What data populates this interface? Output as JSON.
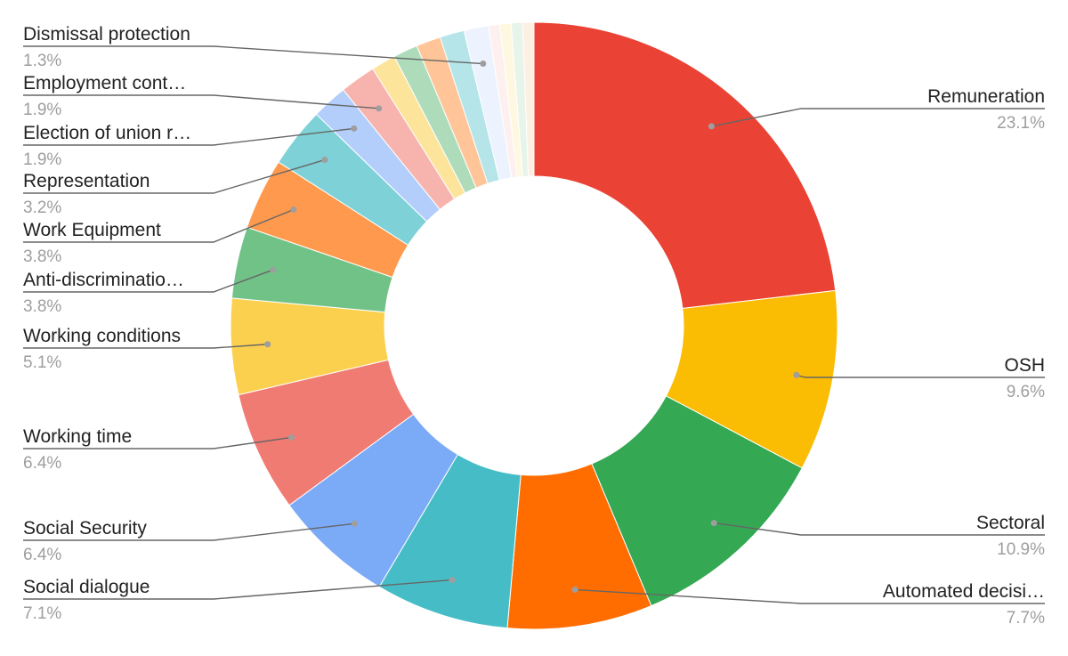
{
  "chart_data": {
    "type": "pie",
    "donut": true,
    "title": "",
    "slices": [
      {
        "label": "Remuneration",
        "pct_label": "23.1%",
        "value": 23.1,
        "color": "#ea4335"
      },
      {
        "label": "OSH",
        "pct_label": "9.6%",
        "value": 9.6,
        "color": "#fbbc04"
      },
      {
        "label": "Sectoral",
        "pct_label": "10.9%",
        "value": 10.9,
        "color": "#34a853"
      },
      {
        "label": "Automated decisi…",
        "pct_label": "7.7%",
        "value": 7.7,
        "color": "#ff6d01"
      },
      {
        "label": "Social dialogue",
        "pct_label": "7.1%",
        "value": 7.1,
        "color": "#46bdc6"
      },
      {
        "label": "Social Security",
        "pct_label": "6.4%",
        "value": 6.4,
        "color": "#7baaf7"
      },
      {
        "label": "Working time",
        "pct_label": "6.4%",
        "value": 6.4,
        "color": "#f07b72"
      },
      {
        "label": "Working conditions",
        "pct_label": "5.1%",
        "value": 5.1,
        "color": "#fcd04f"
      },
      {
        "label": "Anti-discriminatio…",
        "pct_label": "3.8%",
        "value": 3.8,
        "color": "#71c287"
      },
      {
        "label": "Work Equipment",
        "pct_label": "3.8%",
        "value": 3.8,
        "color": "#ff994d"
      },
      {
        "label": "Representation",
        "pct_label": "3.2%",
        "value": 3.2,
        "color": "#7ed1d7"
      },
      {
        "label": "Election of union r…",
        "pct_label": "1.9%",
        "value": 1.9,
        "color": "#b3cefb"
      },
      {
        "label": "Employment cont…",
        "pct_label": "1.9%",
        "value": 1.9,
        "color": "#f7b4ae"
      },
      {
        "label": "",
        "pct_label": "",
        "value": 1.3,
        "color": "#fde49b"
      },
      {
        "label": "",
        "pct_label": "",
        "value": 1.3,
        "color": "#aedcba"
      },
      {
        "label": "",
        "pct_label": "",
        "value": 1.3,
        "color": "#ffc599"
      },
      {
        "label": "",
        "pct_label": "",
        "value": 1.3,
        "color": "#b5e5e8"
      },
      {
        "label": "Dismissal protection",
        "pct_label": "1.3%",
        "value": 1.3,
        "color": "#ecf2fe"
      },
      {
        "label": "",
        "pct_label": "",
        "value": 0.6,
        "color": "#fdf0ef"
      },
      {
        "label": "",
        "pct_label": "",
        "value": 0.6,
        "color": "#fff8e1"
      },
      {
        "label": "",
        "pct_label": "",
        "value": 0.6,
        "color": "#e6f4ea"
      },
      {
        "label": "",
        "pct_label": "",
        "value": 0.6,
        "color": "#feefe3"
      }
    ]
  }
}
